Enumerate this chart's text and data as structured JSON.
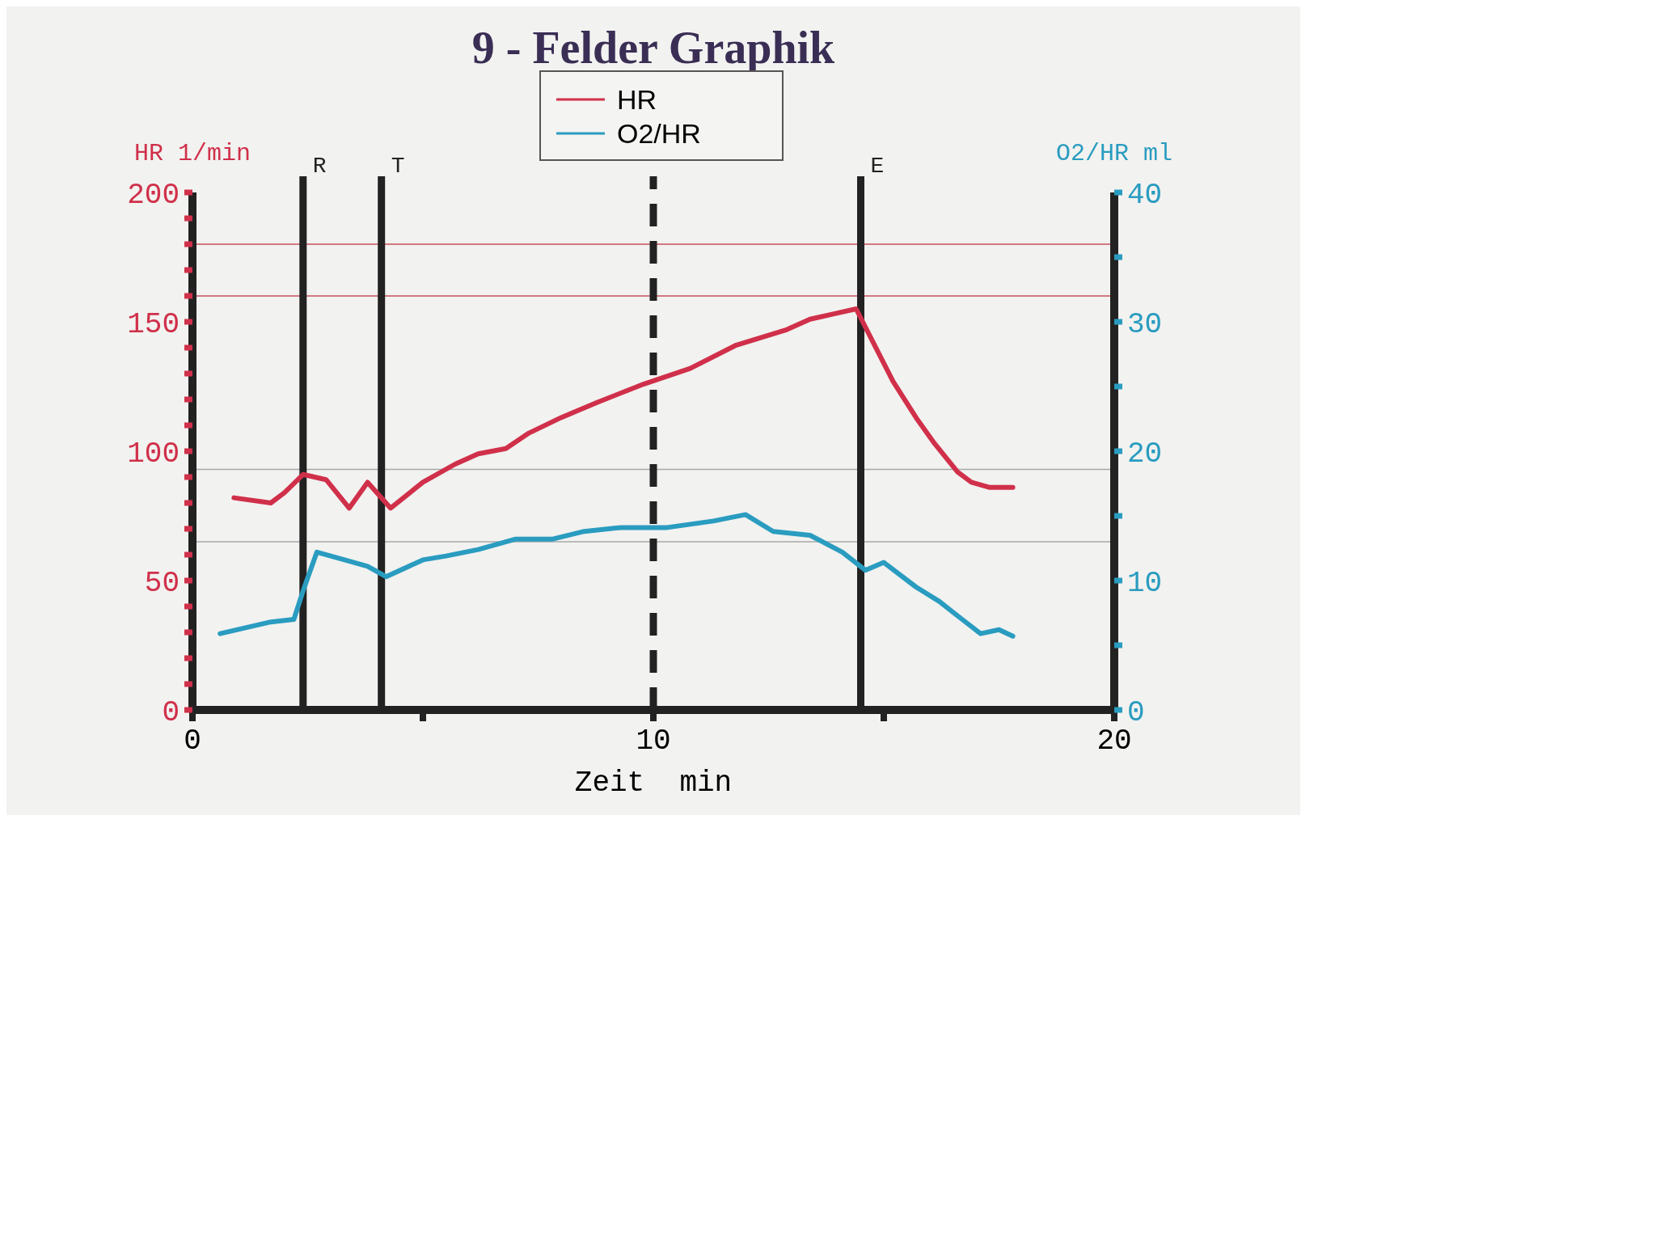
{
  "chart_data": {
    "type": "line",
    "title": "9 - Felder Graphik",
    "xlabel": "Zeit  min",
    "ylabel": "HR 1/min",
    "y2label": "O2/HR ml",
    "xlim": [
      0,
      20
    ],
    "xticks": [
      0,
      {
        "value": 5,
        "label": null
      },
      10,
      {
        "value": 15,
        "label": null
      },
      20
    ],
    "ylim": [
      0,
      200
    ],
    "yticks": [
      0,
      {
        "value": 10,
        "label": null
      },
      {
        "value": 20,
        "label": null
      },
      {
        "value": 30,
        "label": null
      },
      {
        "value": 40,
        "label": null
      },
      50,
      {
        "value": 60,
        "label": null
      },
      {
        "value": 70,
        "label": null
      },
      {
        "value": 80,
        "label": null
      },
      {
        "value": 90,
        "label": null
      },
      100,
      {
        "value": 110,
        "label": null
      },
      {
        "value": 120,
        "label": null
      },
      {
        "value": 130,
        "label": null
      },
      {
        "value": 140,
        "label": null
      },
      150,
      {
        "value": 160,
        "label": null
      },
      {
        "value": 170,
        "label": null
      },
      {
        "value": 180,
        "label": null
      },
      {
        "value": 190,
        "label": null
      },
      200
    ],
    "y2lim": [
      0,
      40
    ],
    "y2ticks": [
      0,
      {
        "value": 5,
        "label": null
      },
      10,
      {
        "value": 15,
        "label": null
      },
      20,
      {
        "value": 25,
        "label": null
      },
      30,
      {
        "value": 35,
        "label": null
      },
      40
    ],
    "legend": "top",
    "grid": false,
    "ref_lines": [
      {
        "axis": "y",
        "value": 180,
        "color": "#c8505e"
      },
      {
        "axis": "y",
        "value": 160,
        "color": "#c8505e"
      },
      {
        "axis": "y",
        "value": 93,
        "color": "#a8a8a8"
      },
      {
        "axis": "y",
        "value": 65,
        "color": "#a8a8a8"
      },
      {
        "axis": "x",
        "value": 2.4,
        "label": "R",
        "color": "#222222"
      },
      {
        "axis": "x",
        "value": 4.1,
        "label": "T",
        "color": "#222222"
      },
      {
        "axis": "x",
        "value": 10,
        "color": "#222222",
        "line_style": "dashed"
      },
      {
        "axis": "x",
        "value": 14.5,
        "label": "E",
        "color": "#222222"
      }
    ],
    "series": [
      {
        "name": "HR",
        "color": "#d0304a",
        "x": [
          0.9,
          1.7,
          2.0,
          2.4,
          2.9,
          3.4,
          3.8,
          4.3,
          5.0,
          5.7,
          6.2,
          6.8,
          7.3,
          8.0,
          8.8,
          9.8,
          10.8,
          11.8,
          12.9,
          13.4,
          13.9,
          14.4,
          14.8,
          15.2,
          15.7,
          16.1,
          16.6,
          16.9,
          17.3,
          17.8
        ],
        "values": [
          82,
          80,
          84,
          91,
          89,
          78,
          88,
          78,
          88,
          95,
          99,
          101,
          107,
          113,
          119,
          126,
          132,
          141,
          147,
          151,
          153,
          155,
          141,
          127,
          113,
          103,
          92,
          88,
          86,
          86
        ]
      },
      {
        "name": "O2/HR",
        "color": "#2a9cc0",
        "axis": "y2",
        "x": [
          0.6,
          1.7,
          2.2,
          2.4,
          2.7,
          3.3,
          3.8,
          4.2,
          5.0,
          5.5,
          6.2,
          7.0,
          7.8,
          8.5,
          9.3,
          10.3,
          11.3,
          12.0,
          12.6,
          13.4,
          14.1,
          14.6,
          15.0,
          15.7,
          16.2,
          16.7,
          17.1,
          17.5,
          17.8
        ],
        "values": [
          5.9,
          6.8,
          7.0,
          9.2,
          12.2,
          11.6,
          11.1,
          10.3,
          11.6,
          11.9,
          12.4,
          13.2,
          13.2,
          13.8,
          14.1,
          14.1,
          14.6,
          15.1,
          13.8,
          13.5,
          12.2,
          10.8,
          11.4,
          9.5,
          8.4,
          7.0,
          5.9,
          6.2,
          5.7
        ]
      }
    ]
  }
}
